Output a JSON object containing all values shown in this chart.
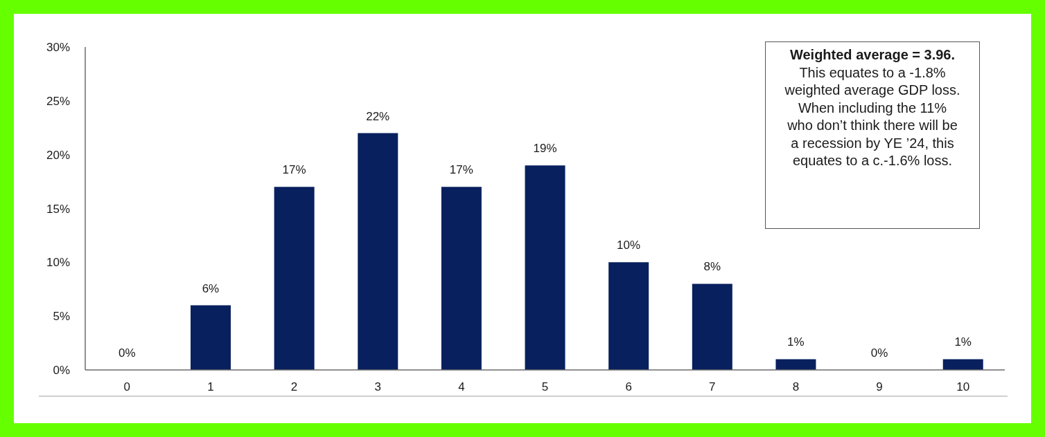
{
  "chart_data": {
    "type": "bar",
    "categories": [
      "0",
      "1",
      "2",
      "3",
      "4",
      "5",
      "6",
      "7",
      "8",
      "9",
      "10"
    ],
    "values": [
      0,
      6,
      17,
      22,
      17,
      19,
      10,
      8,
      1,
      0,
      1
    ],
    "value_labels": [
      "0%",
      "6%",
      "17%",
      "22%",
      "17%",
      "19%",
      "10%",
      "8%",
      "1%",
      "0%",
      "1%"
    ],
    "color": "#08205e",
    "ylim": [
      0,
      30
    ],
    "yticks": [
      {
        "value": 0,
        "label": "0%"
      },
      {
        "value": 5,
        "label": "5%"
      },
      {
        "value": 10,
        "label": "10%"
      },
      {
        "value": 15,
        "label": "15%"
      },
      {
        "value": 20,
        "label": "20%"
      },
      {
        "value": 25,
        "label": "25%"
      },
      {
        "value": 30,
        "label": "30%"
      }
    ],
    "annotations": [
      "Weighted average = 3.96.",
      "This equates to a -1.8%\nweighted average GDP loss.\nWhen including the 11%\nwho don’t think there will be\na recession by YE ’24, this\nequates to a c.-1.6% loss."
    ]
  }
}
